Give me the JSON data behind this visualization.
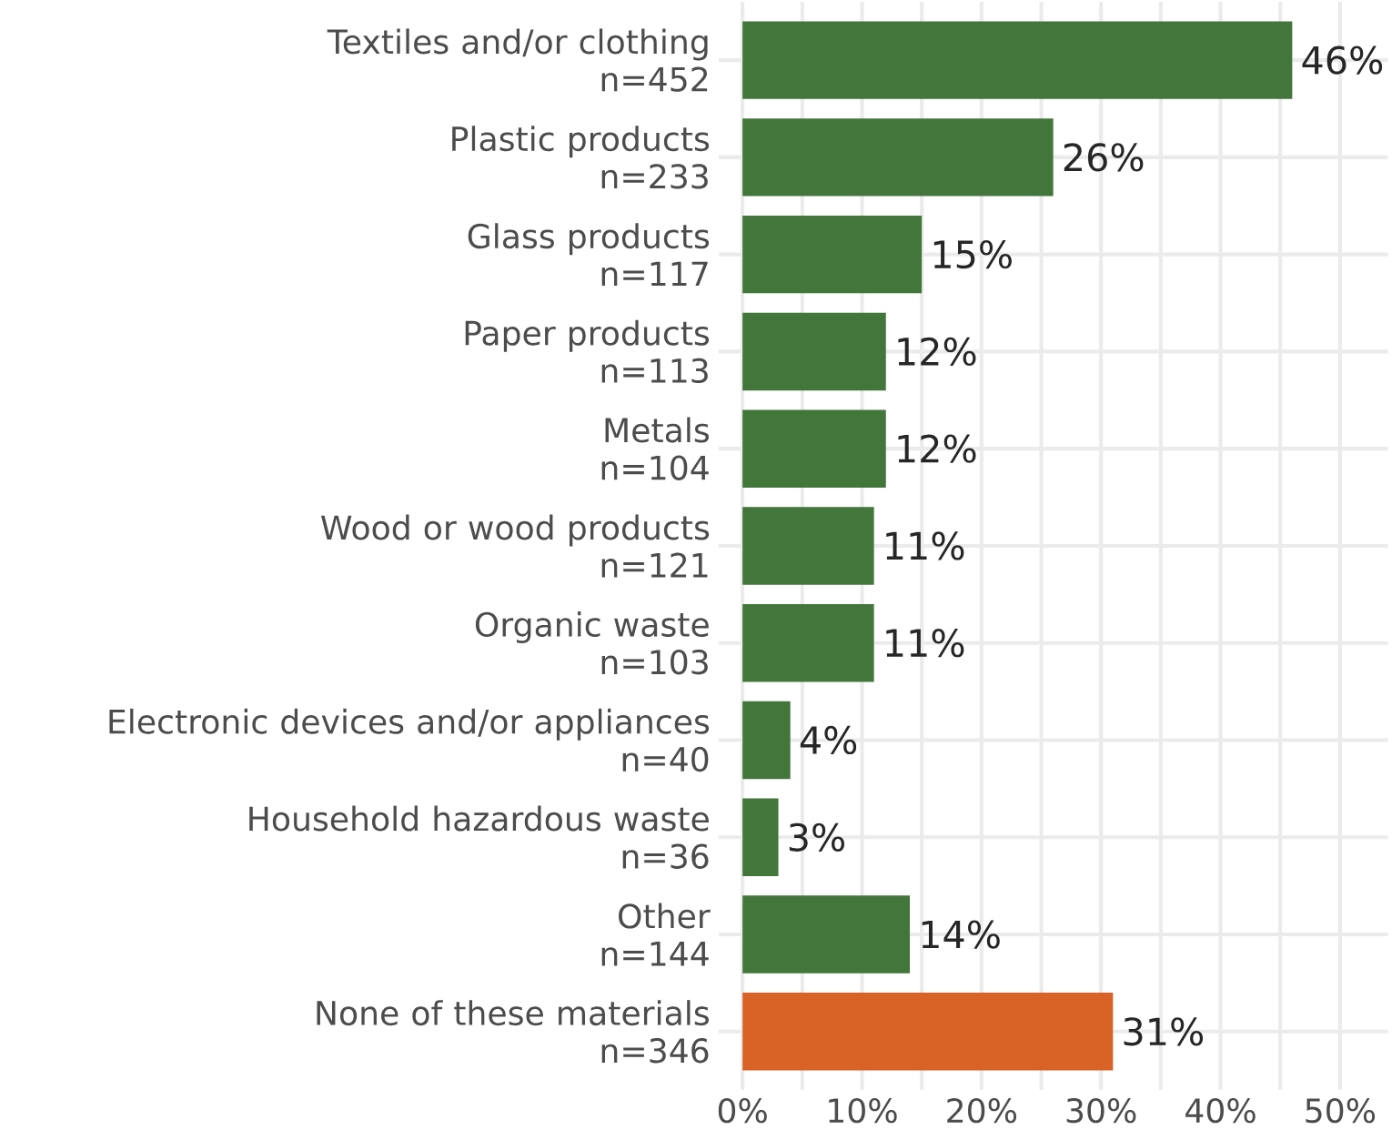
{
  "chart_data": {
    "type": "bar",
    "orientation": "horizontal",
    "categories": [
      "Textiles and/or clothing\nn=452",
      "Plastic products\nn=233",
      "Glass products\nn=117",
      "Paper products\nn=113",
      "Metals\nn=104",
      "Wood or wood products\nn=121",
      "Organic waste\nn=103",
      "Electronic devices and/or appliances\nn=40",
      "Household hazardous waste\nn=36",
      "Other\nn=144",
      "None of these materials\nn=346"
    ],
    "values": [
      46,
      26,
      15,
      12,
      12,
      11,
      11,
      4,
      3,
      14,
      31
    ],
    "colors": [
      "#42763a",
      "#42763a",
      "#42763a",
      "#42763a",
      "#42763a",
      "#42763a",
      "#42763a",
      "#42763a",
      "#42763a",
      "#42763a",
      "#d96227"
    ],
    "value_labels": [
      "46%",
      "26%",
      "15%",
      "12%",
      "12%",
      "11%",
      "11%",
      "4%",
      "3%",
      "14%",
      "31%"
    ],
    "xlim": [
      -2,
      54
    ],
    "xticks": [
      {
        "value": 0,
        "label": "0%"
      },
      {
        "value": 5,
        "label": null
      },
      {
        "value": 10,
        "label": "10%"
      },
      {
        "value": 15,
        "label": null
      },
      {
        "value": 20,
        "label": "20%"
      },
      {
        "value": 25,
        "label": null
      },
      {
        "value": 30,
        "label": "30%"
      },
      {
        "value": 35,
        "label": null
      },
      {
        "value": 40,
        "label": "40%"
      },
      {
        "value": 45,
        "label": null
      },
      {
        "value": 50,
        "label": "50%"
      }
    ],
    "grid": true
  }
}
